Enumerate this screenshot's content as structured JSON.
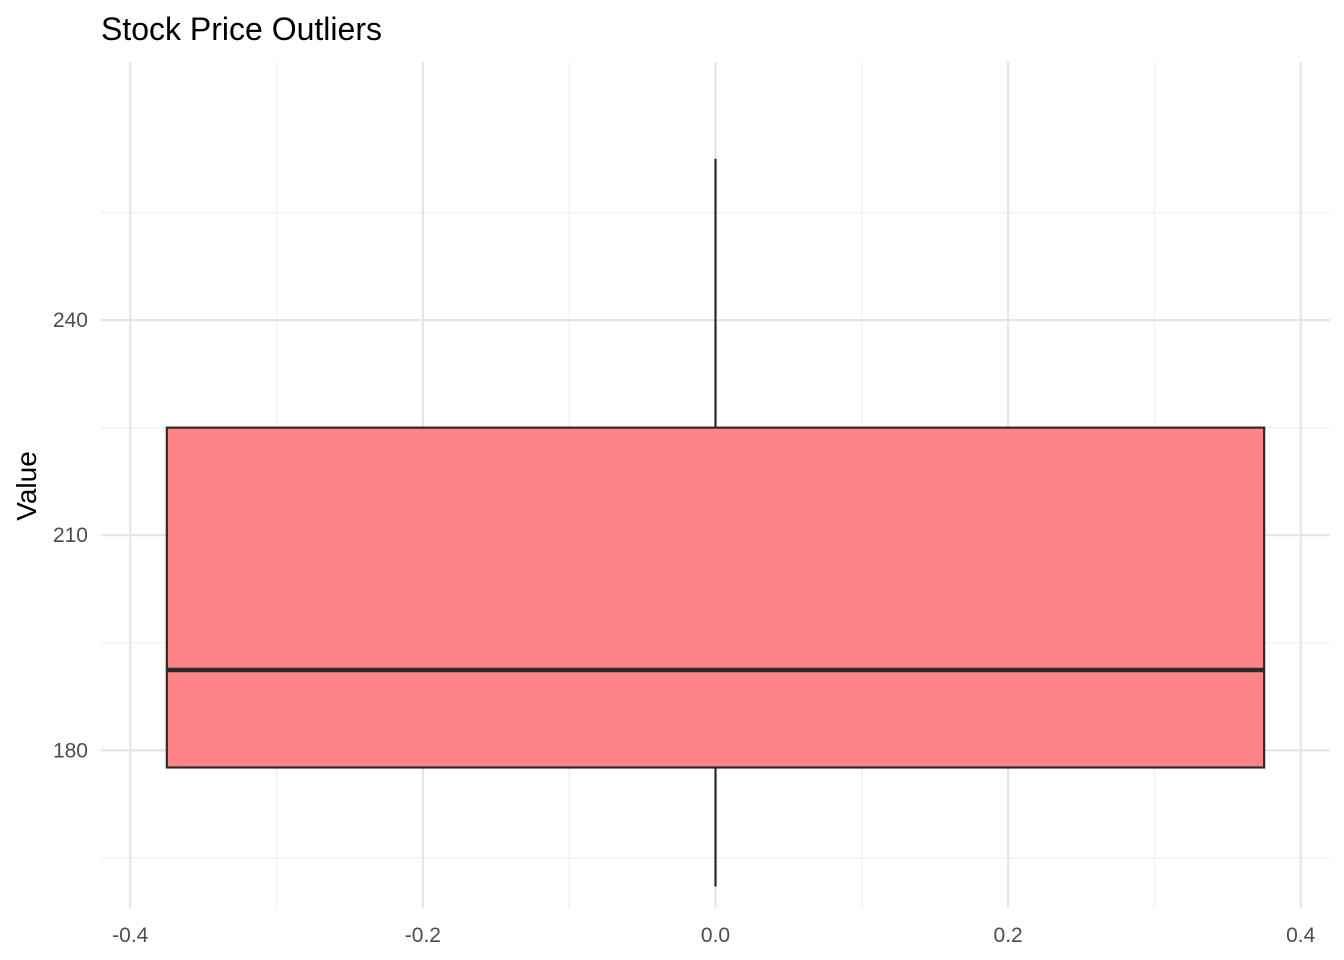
{
  "chart_data": {
    "type": "boxplot",
    "title": "Stock Price Outliers",
    "xlabel": "",
    "ylabel": "Value",
    "xlim": [
      -0.42,
      0.42
    ],
    "ylim": [
      158,
      276
    ],
    "x_ticks": [
      -0.4,
      -0.2,
      0.0,
      0.2,
      0.4
    ],
    "x_tick_labels": [
      "-0.4",
      "-0.2",
      "0.0",
      "0.2",
      "0.4"
    ],
    "y_ticks": [
      180,
      210,
      240
    ],
    "y_tick_labels": [
      "180",
      "210",
      "240"
    ],
    "y_minor_ticks": [
      165,
      195,
      225,
      255
    ],
    "grid": true,
    "box": {
      "x_center": 0.0,
      "x_left": -0.375,
      "x_right": 0.375,
      "whisker_low": 161,
      "q1": 177.6,
      "median": 191.2,
      "q3": 225,
      "whisker_high": 262.5
    },
    "colors": {
      "box_fill": "#ff7f82",
      "box_stroke": "#2b2b2b",
      "grid_major": "#e5e5e5",
      "grid_minor": "#f0f0f0"
    }
  }
}
